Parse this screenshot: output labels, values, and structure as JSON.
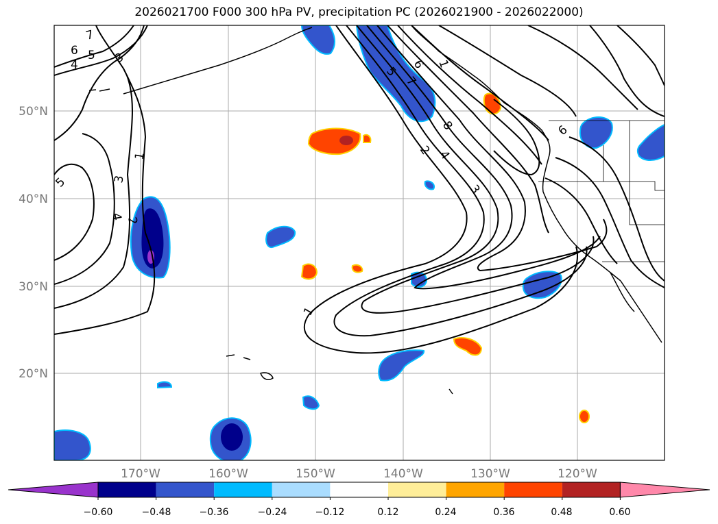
{
  "title": "2026021700 F000 300 hPa PV, precipitation PC (2026021900 - 2026022000)",
  "lon_labels": [
    "170°W",
    "160°W",
    "150°W",
    "140°W",
    "130°W",
    "120°W"
  ],
  "lat_labels": [
    "50°N",
    "40°N",
    "30°N",
    "20°N"
  ],
  "contour_labels": [
    "7",
    "6",
    "5",
    "4",
    "3",
    "5",
    "3",
    "4",
    "2",
    "1",
    "1",
    "5",
    "6",
    "7",
    "8",
    "4",
    "2",
    "3",
    "6",
    "1"
  ],
  "colorbar": {
    "colors": [
      "#9933cc",
      "#00008b",
      "#3355cc",
      "#00bbff",
      "#aaddff",
      "#ffffff",
      "#ffee99",
      "#ffa500",
      "#ff4400",
      "#b22222",
      "#ff88aa"
    ],
    "tick_labels": [
      "−0.60",
      "−0.48",
      "−0.36",
      "−0.24",
      "−0.12",
      "0.12",
      "0.24",
      "0.36",
      "0.48",
      "0.60"
    ]
  },
  "colors": {
    "land_line": "#000000",
    "grid": "#aaaaaa",
    "tick_label": "#777777",
    "contour": "#000000"
  }
}
